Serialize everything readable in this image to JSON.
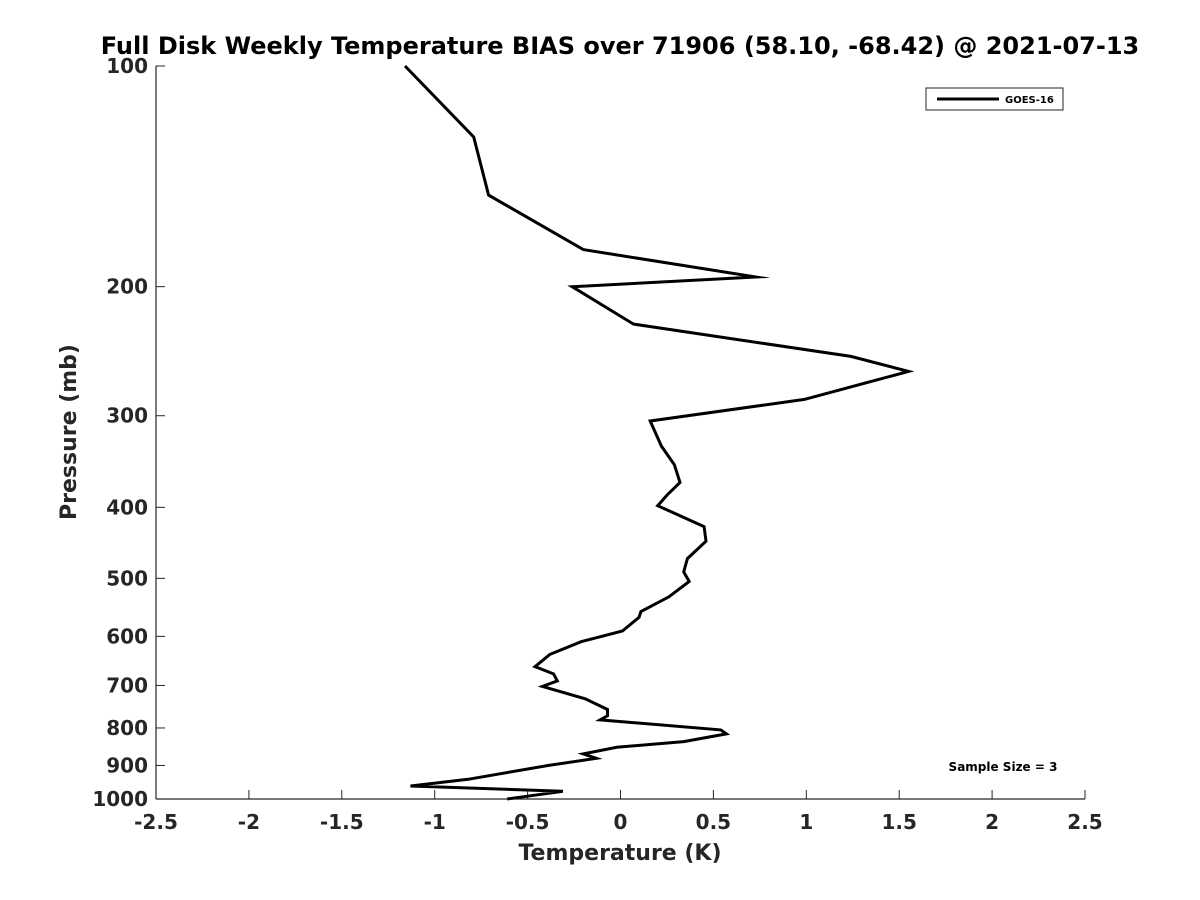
{
  "chart_data": {
    "type": "line",
    "title": "Full Disk Weekly Temperature BIAS over 71906 (58.10, -68.42) @ 2021-07-13",
    "xlabel": "Temperature (K)",
    "ylabel": "Pressure (mb)",
    "xlim": [
      -2.5,
      2.5
    ],
    "ylim": [
      100,
      1000
    ],
    "y_scale": "log",
    "y_reversed": true,
    "x_ticks": [
      "-2.5",
      "-2",
      "-1.5",
      "-1",
      "-0.5",
      "0",
      "0.5",
      "1",
      "1.5",
      "2",
      "2.5"
    ],
    "y_ticks": [
      "100",
      "200",
      "300",
      "400",
      "500",
      "600",
      "700",
      "800",
      "900",
      "1000"
    ],
    "grid": false,
    "legend_position": "top-right",
    "annotation": "Sample Size = 3",
    "series": [
      {
        "name": "GOES-16",
        "color": "#000000",
        "points": [
          [
            -1.16,
            100
          ],
          [
            -0.79,
            125
          ],
          [
            -0.71,
            150
          ],
          [
            -0.2,
            178
          ],
          [
            0.73,
            194
          ],
          [
            -0.26,
            200
          ],
          [
            0.07,
            225
          ],
          [
            1.24,
            249
          ],
          [
            1.55,
            261
          ],
          [
            0.99,
            285
          ],
          [
            0.16,
            305
          ],
          [
            0.22,
            330
          ],
          [
            0.29,
            350
          ],
          [
            0.32,
            370
          ],
          [
            0.25,
            385
          ],
          [
            0.2,
            398
          ],
          [
            0.45,
            425
          ],
          [
            0.46,
            445
          ],
          [
            0.36,
            470
          ],
          [
            0.34,
            490
          ],
          [
            0.37,
            505
          ],
          [
            0.26,
            530
          ],
          [
            0.11,
            555
          ],
          [
            0.1,
            565
          ],
          [
            0.01,
            590
          ],
          [
            -0.21,
            610
          ],
          [
            -0.38,
            635
          ],
          [
            -0.46,
            660
          ],
          [
            -0.36,
            675
          ],
          [
            -0.34,
            690
          ],
          [
            -0.42,
            702
          ],
          [
            -0.19,
            730
          ],
          [
            -0.07,
            755
          ],
          [
            -0.07,
            770
          ],
          [
            -0.11,
            780
          ],
          [
            0.54,
            805
          ],
          [
            0.57,
            815
          ],
          [
            0.34,
            835
          ],
          [
            -0.02,
            850
          ],
          [
            -0.2,
            868
          ],
          [
            -0.13,
            880
          ],
          [
            -0.39,
            900
          ],
          [
            -0.82,
            940
          ],
          [
            -1.13,
            960
          ],
          [
            -0.31,
            976
          ],
          [
            -0.61,
            1000
          ]
        ]
      }
    ]
  }
}
